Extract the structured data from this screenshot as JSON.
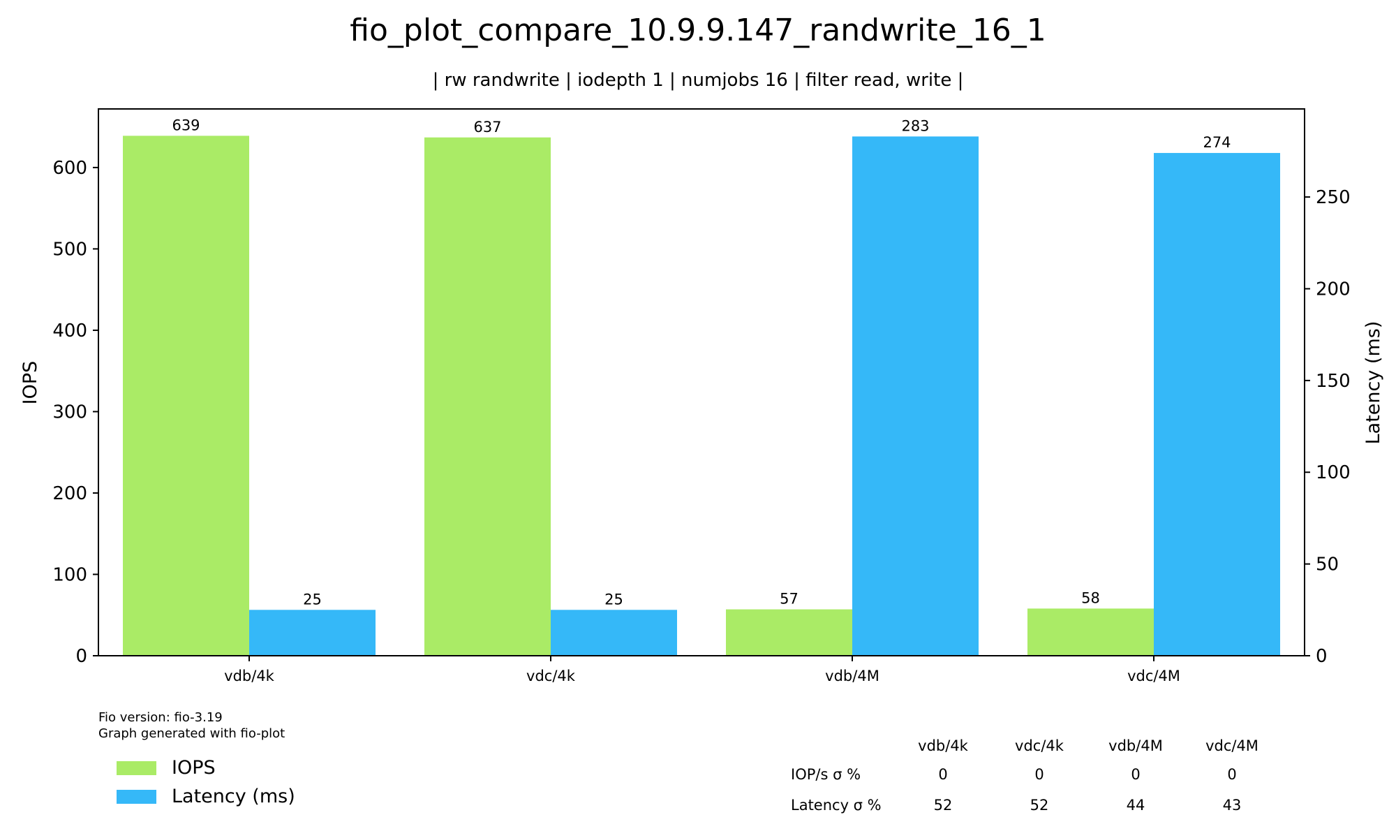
{
  "chart_data": {
    "type": "bar",
    "title": "fio_plot_compare_10.9.9.147_randwrite_16_1",
    "subtitle": "| rw randwrite | iodepth 1 | numjobs 16 | filter read, write |",
    "categories": [
      "vdb/4k",
      "vdc/4k",
      "vdb/4M",
      "vdc/4M"
    ],
    "series": [
      {
        "name": "IOPS",
        "axis": "left",
        "color": "#aaeb66",
        "values": [
          639,
          637,
          57,
          58
        ]
      },
      {
        "name": "Latency (ms)",
        "axis": "right",
        "color": "#35b8f8",
        "values": [
          25,
          25,
          283,
          274
        ]
      }
    ],
    "ylabel": "IOPS",
    "ylabel_right": "Latency (ms)",
    "ylim": [
      0,
      672
    ],
    "ylim_right": [
      0,
      298
    ],
    "yticks": [
      0,
      100,
      200,
      300,
      400,
      500,
      600
    ],
    "yticks_right": [
      0,
      50,
      100,
      150,
      200,
      250
    ],
    "grid": false,
    "legend_position": "bottom-left"
  },
  "notes": [
    "Fio version: fio-3.19",
    "Graph generated with fio-plot"
  ],
  "stats_table": {
    "columns": [
      "vdb/4k",
      "vdc/4k",
      "vdb/4M",
      "vdc/4M"
    ],
    "rows": [
      {
        "label": "IOP/s σ %",
        "values": [
          "0",
          "0",
          "0",
          "0"
        ]
      },
      {
        "label": "Latency σ %",
        "values": [
          "52",
          "52",
          "44",
          "43"
        ]
      }
    ]
  }
}
